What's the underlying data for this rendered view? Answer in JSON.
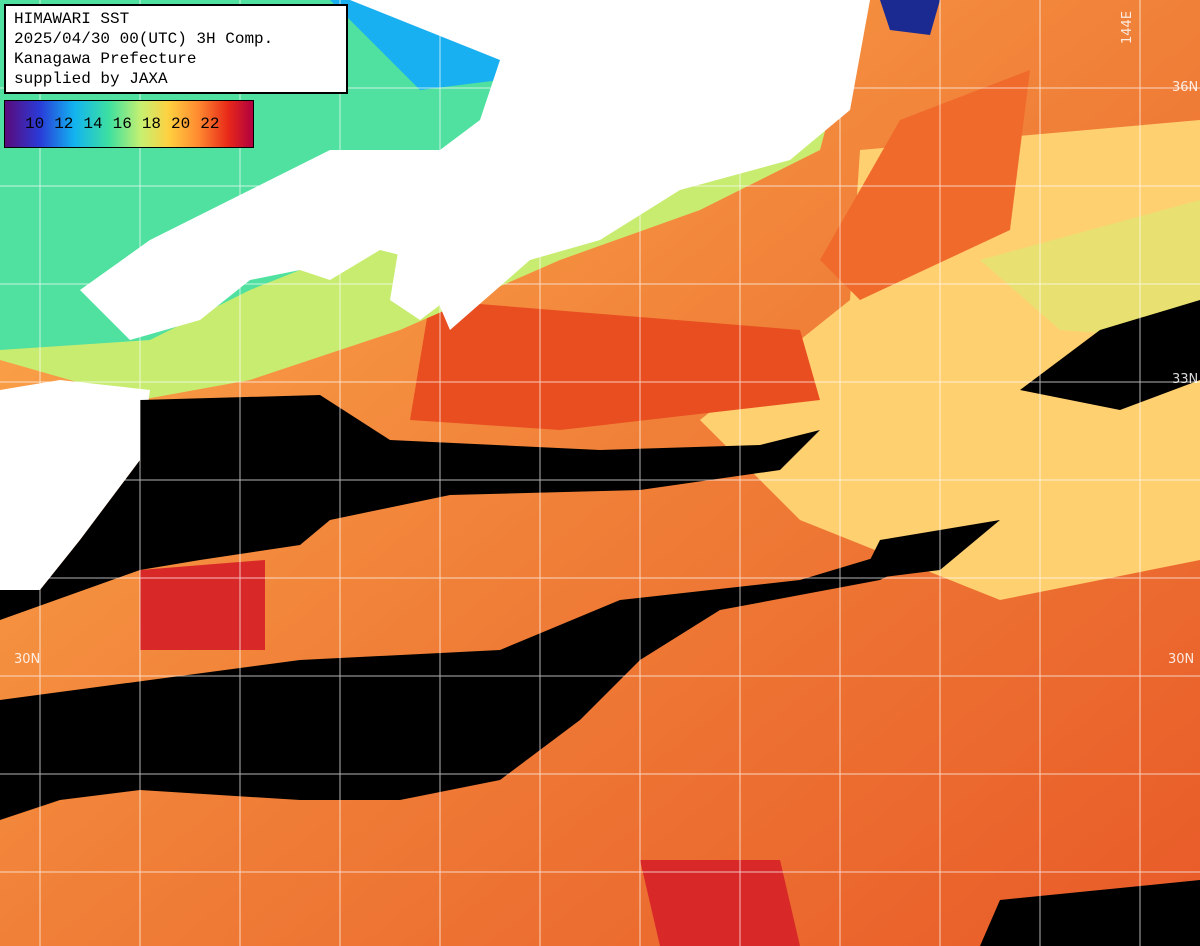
{
  "header": {
    "lines": [
      "HIMAWARI SST",
      "2025/04/30 00(UTC) 3H Comp.",
      "Kanagawa Prefecture",
      "supplied by JAXA"
    ]
  },
  "colorbar": {
    "labels": [
      "10",
      "12",
      "14",
      "16",
      "18",
      "20",
      "22"
    ]
  },
  "grid_labels": {
    "lon": [
      "144E"
    ],
    "lat_right": [
      "36N",
      "33N",
      "30N"
    ],
    "lat_left": [
      "30N"
    ]
  }
}
